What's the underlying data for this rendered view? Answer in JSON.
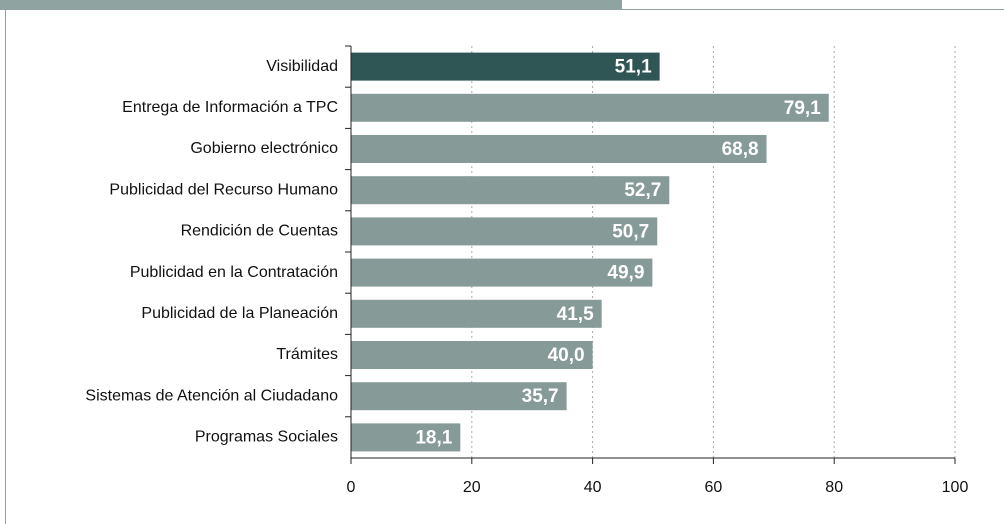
{
  "chart_data": {
    "type": "barh",
    "categories": [
      "Visibilidad",
      "Entrega de Información a TPC",
      "Gobierno electrónico",
      "Publicidad del Recurso Humano",
      "Rendición de Cuentas",
      "Publicidad en la Contratación",
      "Publicidad de la Planeación",
      "Trámites",
      "Sistemas de Atención al Ciudadano",
      "Programas Sociales"
    ],
    "values": [
      51.1,
      79.1,
      68.8,
      52.7,
      50.7,
      49.9,
      41.5,
      40.0,
      35.7,
      18.1
    ],
    "value_labels": [
      "51,1",
      "79,1",
      "68,8",
      "52,7",
      "50,7",
      "49,9",
      "41,5",
      "40,0",
      "35,7",
      "18,1"
    ],
    "colors": [
      "#2f5654",
      "#869a97",
      "#869a97",
      "#869a97",
      "#869a97",
      "#869a97",
      "#869a97",
      "#869a97",
      "#869a97",
      "#869a97"
    ],
    "xlim": [
      0,
      100
    ],
    "xticks": [
      0,
      20,
      40,
      60,
      80,
      100
    ],
    "grid": true
  }
}
